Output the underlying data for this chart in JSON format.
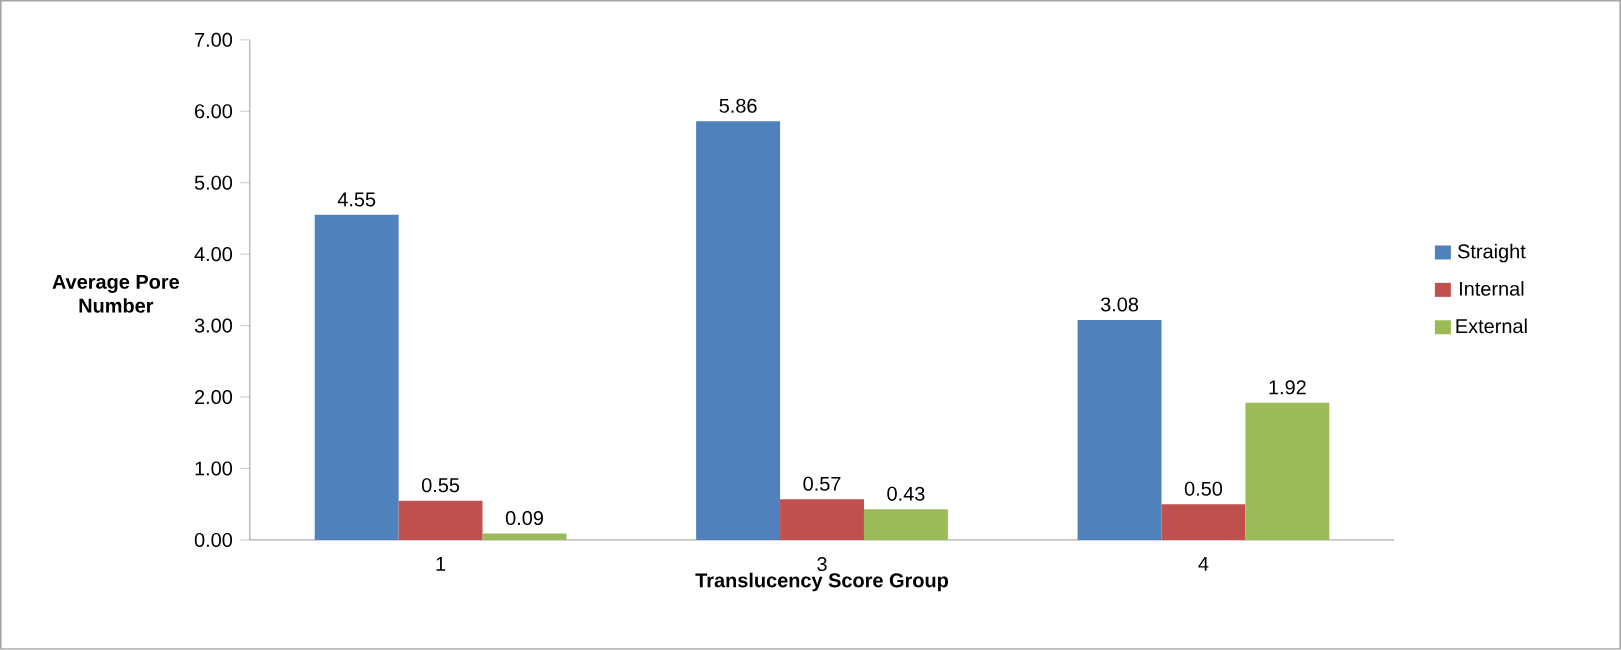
{
  "chart_data": {
    "type": "bar",
    "xlabel": "Translucency Score Group",
    "ylabel": "Average Pore Number",
    "categories": [
      "1",
      "3",
      "4"
    ],
    "series": [
      {
        "name": "Straight",
        "color": "#4f81bd",
        "values": [
          4.55,
          5.86,
          3.08
        ],
        "value_labels": [
          "4.55",
          "5.86",
          "3.08"
        ]
      },
      {
        "name": "Internal",
        "color": "#c0504d",
        "values": [
          0.55,
          0.57,
          0.5
        ],
        "value_labels": [
          "0.55",
          "0.57",
          "0.50"
        ]
      },
      {
        "name": "External",
        "color": "#9bbb59",
        "values": [
          0.09,
          0.43,
          1.92
        ],
        "value_labels": [
          "0.09",
          "0.43",
          "1.92"
        ]
      }
    ],
    "ylim": [
      0,
      7
    ],
    "yticks": [
      {
        "value": 0,
        "label": "0.00"
      },
      {
        "value": 1,
        "label": "1.00"
      },
      {
        "value": 2,
        "label": "2.00"
      },
      {
        "value": 3,
        "label": "3.00"
      },
      {
        "value": 4,
        "label": "4.00"
      },
      {
        "value": 5,
        "label": "5.00"
      },
      {
        "value": 6,
        "label": "6.00"
      },
      {
        "value": 7,
        "label": "7.00"
      }
    ],
    "grid": false,
    "legend": "right"
  }
}
